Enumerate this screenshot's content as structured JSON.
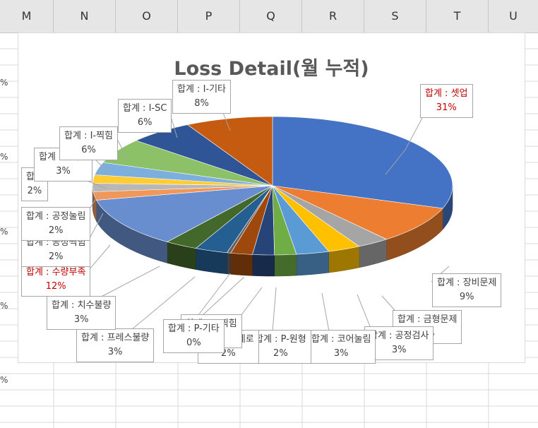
{
  "spreadsheet": {
    "columns": [
      "M",
      "N",
      "O",
      "P",
      "Q",
      "R",
      "S",
      "T",
      "U"
    ],
    "row_percent_marker": "%"
  },
  "chart_data": {
    "type": "pie",
    "title": "Loss Detail(월 누적)",
    "three_d": true,
    "slices": [
      {
        "label": "합계 : 셋업",
        "value": "31%",
        "color": "#4472c4",
        "highlight": true
      },
      {
        "label": "합계 : 장비문제",
        "value": "9%",
        "color": "#ed7d31"
      },
      {
        "label": "합계 : 금형문제",
        "value": "3%",
        "color": "#a5a5a5"
      },
      {
        "label": "합계 : 공정검사",
        "value": "3%",
        "color": "#ffc000"
      },
      {
        "label": "합계 : 코어눌림",
        "value": "3%",
        "color": "#5b9bd5"
      },
      {
        "label": "합계 : P-원형",
        "value": "2%",
        "color": "#70ad47"
      },
      {
        "label": "합계 : P-세로",
        "value": "2%",
        "color": "#264478"
      },
      {
        "label": "합계 : P-찍힘",
        "value": "2%",
        "color": "#9e480e"
      },
      {
        "label": "합계 : P-기타",
        "value": "0%",
        "color": "#636363"
      },
      {
        "label": "합계 : 프레스불량",
        "value": "3%",
        "color": "#255e91"
      },
      {
        "label": "합계 : 치수불량",
        "value": "3%",
        "color": "#43682b"
      },
      {
        "label": "합계 : 수량부족",
        "value": "12%",
        "color": "#698ed0",
        "highlight": true
      },
      {
        "label": "합계 : 공정찍힘",
        "value": "2%",
        "color": "#f1975a"
      },
      {
        "label": "합계 : 공정눌림",
        "value": "2%",
        "color": "#b7b7b7"
      },
      {
        "label": "합계",
        "value": "2%",
        "color": "#ffcd33"
      },
      {
        "label": "합계 : I-세로",
        "value": "3%",
        "color": "#7cafdd"
      },
      {
        "label": "합계 : I-찍힘",
        "value": "6%",
        "color": "#8cc168"
      },
      {
        "label": "합계 : I-SC",
        "value": "6%",
        "color": "#2f5597"
      },
      {
        "label": "합계 : I-기타",
        "value": "8%",
        "color": "#c55a11"
      }
    ]
  }
}
